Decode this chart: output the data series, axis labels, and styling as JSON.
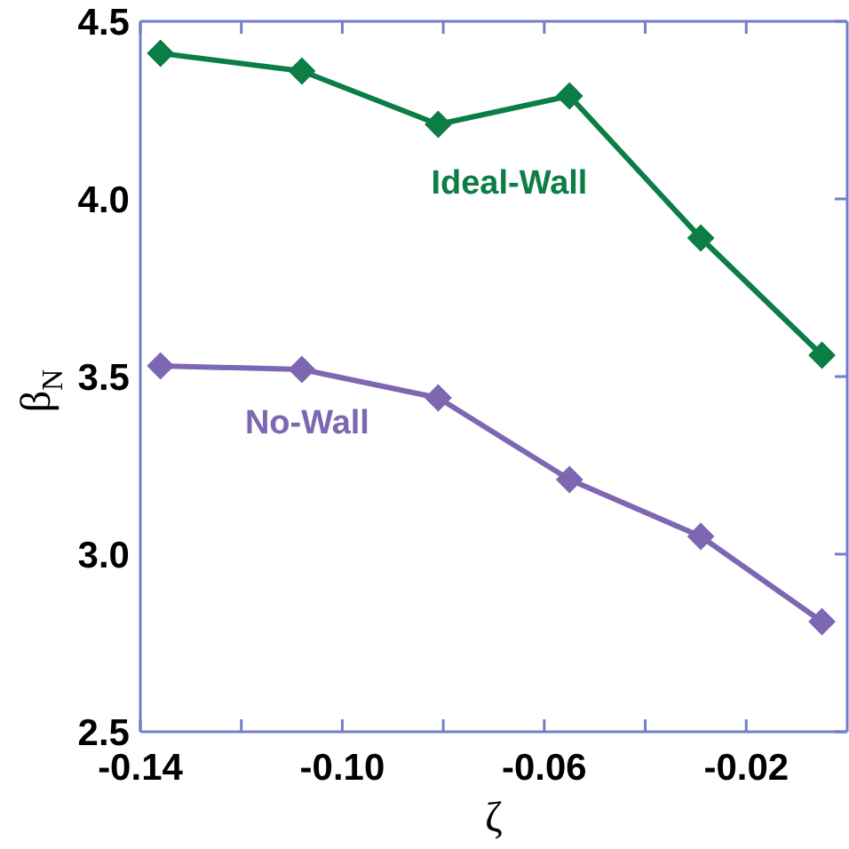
{
  "chart_data": {
    "type": "line",
    "xlabel": "ζ",
    "ylabel": "β$_{N}$",
    "xlim": [
      -0.14,
      0
    ],
    "xticks": [
      -0.14,
      {
        "value": -0.12,
        "label": null
      },
      {
        "value": -0.1,
        "label": "-0.10"
      },
      {
        "value": -0.08,
        "label": null
      },
      -0.06,
      {
        "value": -0.04,
        "label": null
      },
      -0.02
    ],
    "ylim": [
      2.5,
      4.5
    ],
    "yticks": [
      2.5,
      {
        "value": 3,
        "label": "3.0"
      },
      3.5,
      {
        "value": 4,
        "label": "4.0"
      },
      4.5
    ],
    "marker": "diamond",
    "x": [
      -0.136,
      -0.108,
      -0.081,
      -0.055,
      -0.029,
      -0.005
    ],
    "series": [
      {
        "name": "Ideal-Wall",
        "color": "#0b7d45",
        "values": [
          4.41,
          4.36,
          4.21,
          4.29,
          3.89,
          3.56
        ]
      },
      {
        "name": "No-Wall",
        "color": "#7e67b2",
        "values": [
          3.53,
          3.52,
          3.44,
          3.21,
          3.05,
          2.81
        ]
      }
    ]
  }
}
